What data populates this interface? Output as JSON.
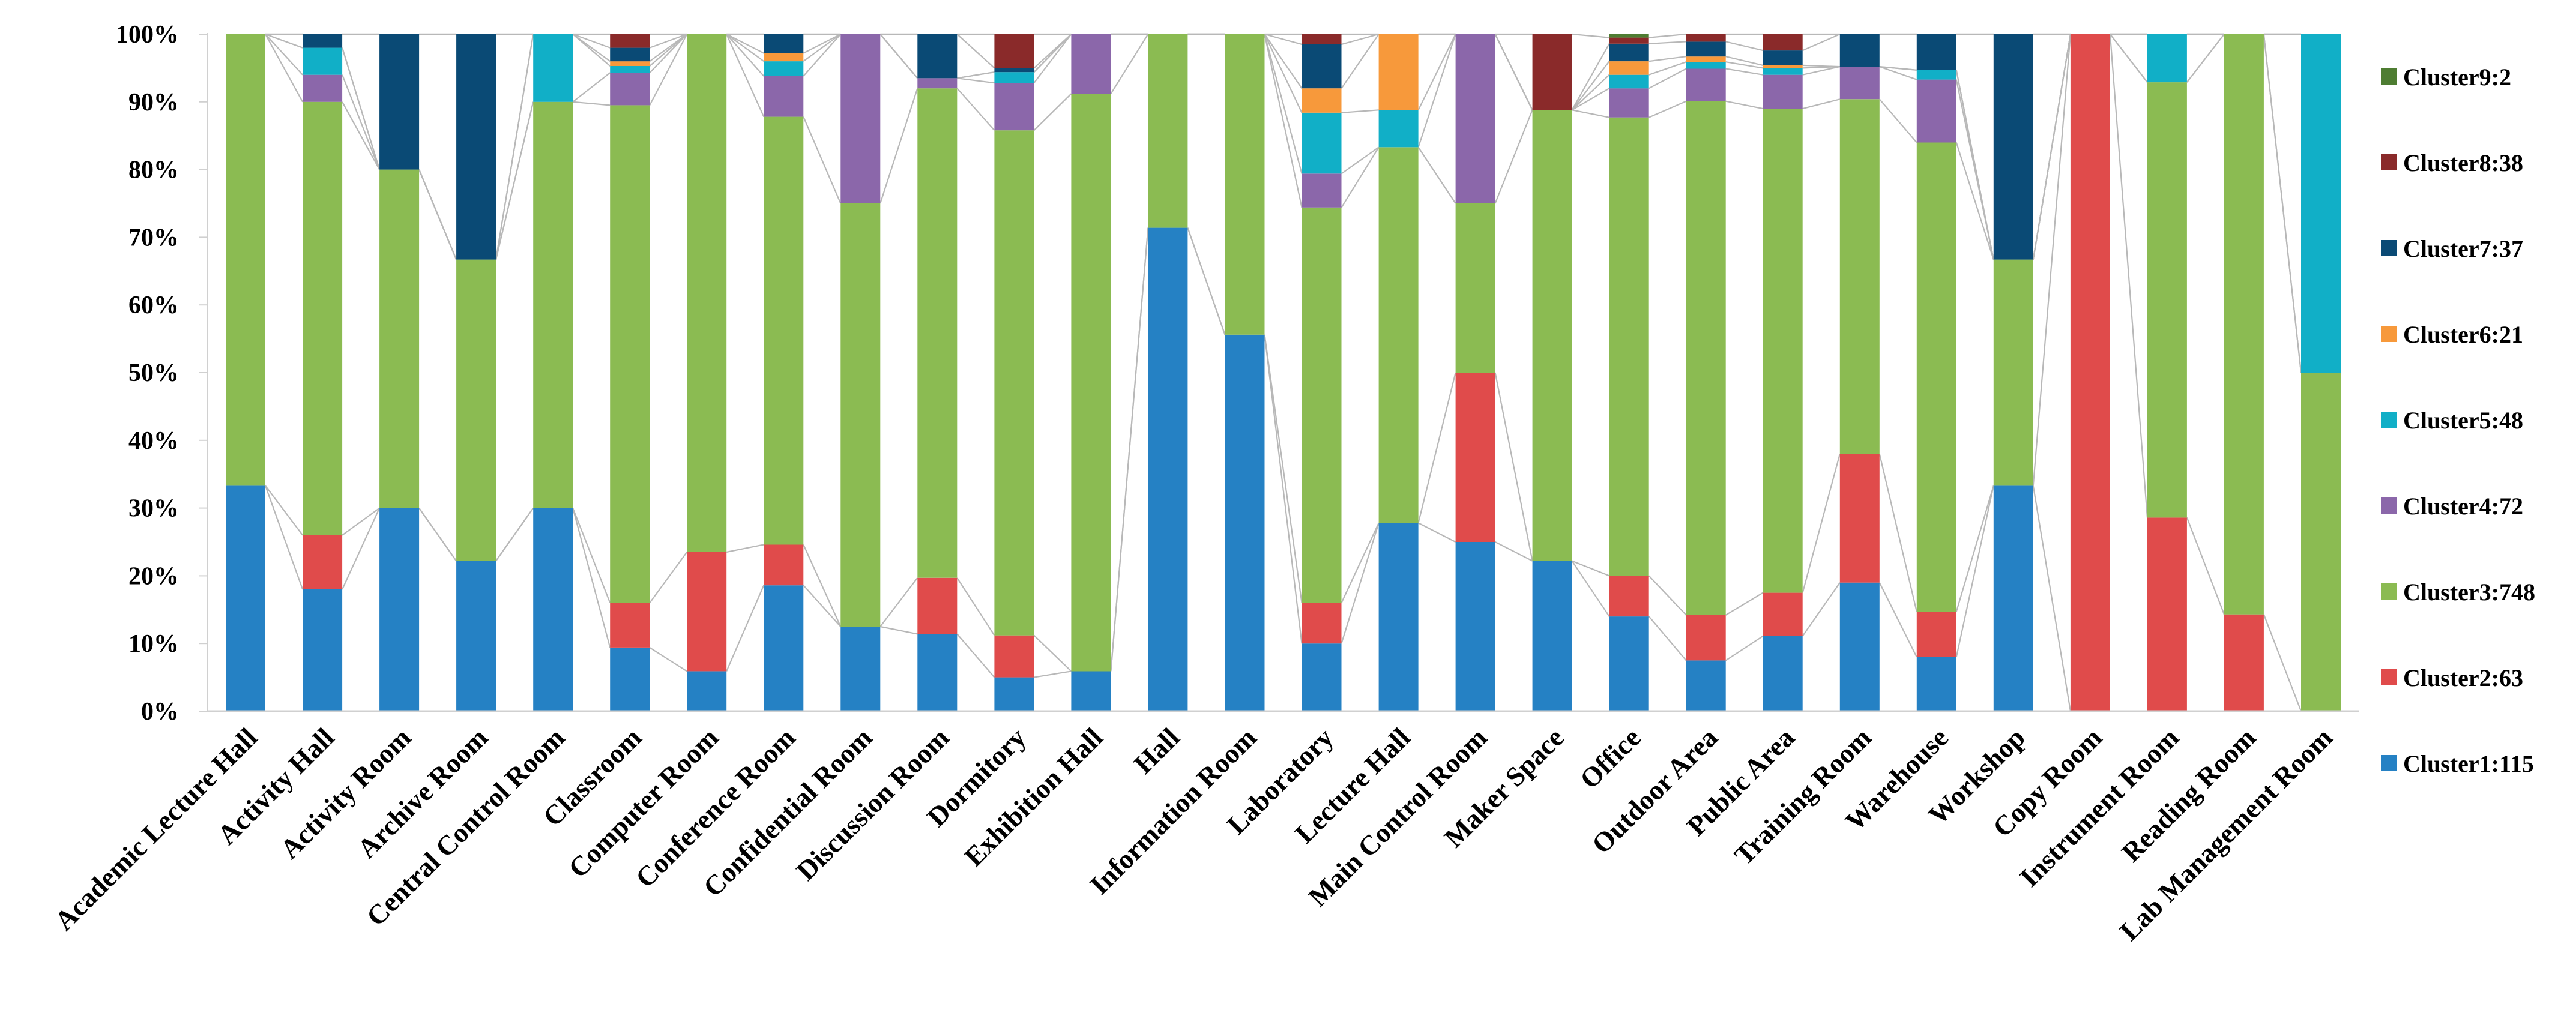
{
  "chart_data": {
    "type": "bar",
    "stacked": true,
    "normalized": true,
    "title": "",
    "xlabel": "",
    "ylabel": "",
    "ylim": [
      0,
      100
    ],
    "yticks": [
      "0%",
      "10%",
      "20%",
      "30%",
      "40%",
      "50%",
      "60%",
      "70%",
      "80%",
      "90%",
      "100%"
    ],
    "legend_position": "right",
    "categories": [
      "Academic Lecture Hall",
      "Activity Hall",
      "Activity Room",
      "Archive Room",
      "Central Control Room",
      "Classroom",
      "Computer Room",
      "Conference Room",
      "Confidential Room",
      "Discussion Room",
      "Dormitory",
      "Exhibition Hall",
      "Hall",
      "Information Room",
      "Laboratory",
      "Lecture Hall",
      "Main Control Room",
      "Maker Space",
      "Office",
      "Outdoor Area",
      "Public Area",
      "Training Room",
      "Warehouse",
      "Workshop",
      "Copy Room",
      "Instrument Room",
      "Reading Room",
      "Lab Management Room"
    ],
    "series": [
      {
        "name": "Cluster1:115",
        "color": "#2581C4",
        "values": [
          33.3,
          18,
          30,
          22.2,
          30,
          9.4,
          5.9,
          18.6,
          12.5,
          11.4,
          5,
          5.9,
          71.4,
          55.6,
          10,
          27.8,
          25,
          22.2,
          14,
          7.5,
          11.1,
          19,
          8,
          33.3,
          0,
          0,
          0,
          0
        ]
      },
      {
        "name": "Cluster2:63",
        "color": "#E04B4B",
        "values": [
          0,
          8,
          0,
          0,
          0,
          6.6,
          17.6,
          6,
          0,
          8.3,
          6.2,
          0,
          0,
          0,
          6,
          0,
          25,
          0,
          6,
          6.7,
          6.4,
          19,
          6.7,
          0,
          100,
          28.6,
          14.3,
          0
        ]
      },
      {
        "name": "Cluster3:748",
        "color": "#8BBB52",
        "values": [
          66.7,
          64,
          50,
          44.5,
          60,
          73.5,
          76.5,
          63.2,
          62.5,
          72.3,
          74.6,
          85.3,
          28.6,
          44.4,
          58.4,
          55.5,
          25,
          66.6,
          67.7,
          75.9,
          71.5,
          52.4,
          69.3,
          33.4,
          0,
          64.3,
          85.7,
          50
        ]
      },
      {
        "name": "Cluster4:72",
        "color": "#8B67AA",
        "values": [
          0,
          4,
          0,
          0,
          0,
          4.8,
          0,
          6,
          25,
          1.5,
          7,
          8.8,
          0,
          0,
          5,
          0,
          25,
          0,
          4.3,
          4.8,
          5,
          4.8,
          9.3,
          0,
          0,
          0,
          0,
          0
        ]
      },
      {
        "name": "Cluster5:48",
        "color": "#11AFC7",
        "values": [
          0,
          4,
          0,
          0,
          10,
          1,
          0,
          2.2,
          0,
          0,
          1.6,
          0,
          0,
          0,
          9,
          5.5,
          0,
          0,
          2,
          1,
          1,
          0,
          1.4,
          0,
          0,
          7.1,
          0,
          50
        ]
      },
      {
        "name": "Cluster6:21",
        "color": "#F7993B",
        "values": [
          0,
          0,
          0,
          0,
          0,
          0.7,
          0,
          1.2,
          0,
          0,
          0,
          0,
          0,
          0,
          3.6,
          11.2,
          0,
          0,
          2,
          0.8,
          0.4,
          0,
          0,
          0,
          0,
          0,
          0,
          0
        ]
      },
      {
        "name": "Cluster7:37",
        "color": "#0A4A75",
        "values": [
          0,
          2,
          20,
          33.3,
          0,
          2,
          0,
          2.8,
          0,
          6.5,
          0.6,
          0,
          0,
          0,
          6.5,
          0,
          0,
          0,
          2.6,
          2.2,
          2.2,
          4.8,
          5.3,
          33.3,
          0,
          0,
          0,
          0
        ]
      },
      {
        "name": "Cluster8:38",
        "color": "#8A2A2A",
        "values": [
          0,
          0,
          0,
          0,
          0,
          2,
          0,
          0,
          0,
          0,
          5,
          0,
          0,
          0,
          1.5,
          0,
          0,
          11.2,
          0.9,
          1.1,
          2.4,
          0,
          0,
          0,
          0,
          0,
          0,
          0
        ]
      },
      {
        "name": "Cluster9:2",
        "color": "#4E7D32",
        "values": [
          0,
          0,
          0,
          0,
          0,
          0,
          0,
          0,
          0,
          0,
          0,
          0,
          0,
          0,
          0,
          0,
          0,
          0,
          0.5,
          0,
          0,
          0,
          0,
          0,
          0,
          0,
          0,
          0
        ]
      }
    ]
  }
}
